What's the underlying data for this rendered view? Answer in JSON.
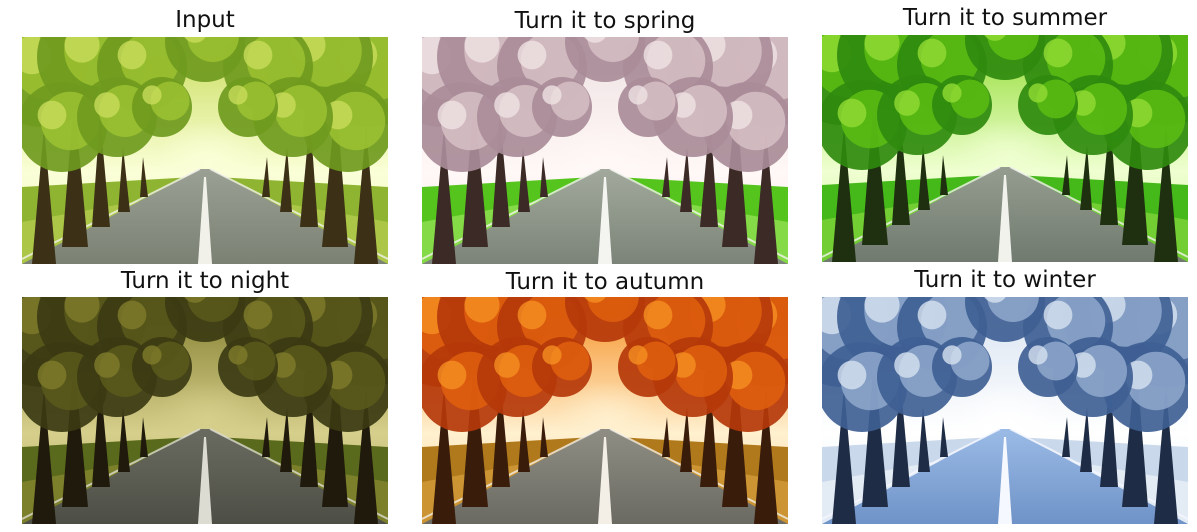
{
  "panels": [
    {
      "caption": "Input",
      "palette": {
        "sky": "#e9f2b0",
        "canopy": "#6f9a1e",
        "canopy2": "#9cc231",
        "canopy3": "#c8dc5a",
        "trunk": "#3c3016",
        "grass": "#8fb431",
        "grass2": "#b8cf52",
        "road": "#7b8173",
        "road2": "#9aa093",
        "line": "#f1f1ea",
        "mist": "#fbffd8"
      }
    },
    {
      "caption": "Turn it to spring",
      "palette": {
        "sky": "#f6ecee",
        "canopy": "#a98c98",
        "canopy2": "#d7c0c6",
        "canopy3": "#efe2e4",
        "trunk": "#3c2a26",
        "grass": "#55c41d",
        "grass2": "#9ae45a",
        "road": "#7c8479",
        "road2": "#a2a99c",
        "line": "#f4f4f0",
        "mist": "#fff8f6"
      }
    },
    {
      "caption": "Turn it to summer",
      "palette": {
        "sky": "#d6f3a0",
        "canopy": "#2f8a0e",
        "canopy2": "#5cbd13",
        "canopy3": "#92dc34",
        "trunk": "#1f3010",
        "grass": "#45b81a",
        "grass2": "#86d73e",
        "road": "#707a6e",
        "road2": "#959d90",
        "line": "#f1f2ec",
        "mist": "#efffd1"
      }
    },
    {
      "caption": "Turn it to night",
      "palette": {
        "sky": "#b8b068",
        "canopy": "#3b3a12",
        "canopy2": "#5a5a1c",
        "canopy3": "#807c2c",
        "trunk": "#1f1a0c",
        "grass": "#5a6a1c",
        "grass2": "#8a8a32",
        "road": "#4d4e45",
        "road2": "#6a6b60",
        "line": "#dcdcd2",
        "mist": "#d6cf8c"
      }
    },
    {
      "caption": "Turn it to autumn",
      "palette": {
        "sky": "#ffd9a0",
        "canopy": "#b5380a",
        "canopy2": "#e0600e",
        "canopy3": "#f58f22",
        "trunk": "#3a1c0b",
        "grass": "#b07a1c",
        "grass2": "#d8a03c",
        "road": "#6b6a62",
        "road2": "#8f8e84",
        "line": "#f3efe6",
        "mist": "#fff0cf"
      }
    },
    {
      "caption": "Turn it to winter",
      "palette": {
        "sky": "#e6eef7",
        "canopy": "#3f5f94",
        "canopy2": "#8fa8cc",
        "canopy3": "#d7e2f0",
        "trunk": "#1f2c45",
        "grass": "#c9d8ea",
        "grass2": "#eef3fa",
        "road": "#6f93c8",
        "road2": "#9bbbe6",
        "line": "#f5f8ff",
        "mist": "#ffffff"
      }
    }
  ]
}
